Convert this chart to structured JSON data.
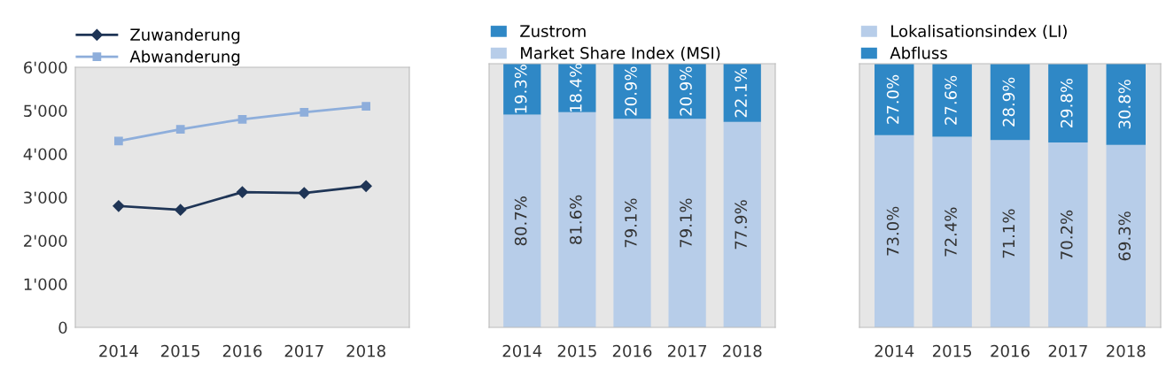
{
  "chart_data": [
    {
      "type": "line",
      "categories": [
        "2014",
        "2015",
        "2016",
        "2017",
        "2018"
      ],
      "series": [
        {
          "name": "Zuwanderung",
          "color": "#1f3556",
          "marker": "diamond",
          "values": [
            2800,
            2710,
            3120,
            3100,
            3260
          ]
        },
        {
          "name": "Abwanderung",
          "color": "#8eaedb",
          "marker": "square",
          "values": [
            4300,
            4570,
            4800,
            4960,
            5100
          ]
        }
      ],
      "ylim": [
        0,
        6000
      ],
      "yticks": [
        0,
        {
          "value": 1000,
          "label": "1'000"
        },
        {
          "value": 2000,
          "label": "2'000"
        },
        {
          "value": 3000,
          "label": "3'000"
        },
        {
          "value": 4000,
          "label": "4'000"
        },
        {
          "value": 5000,
          "label": "5'000"
        },
        {
          "value": 6000,
          "label": "6'000"
        }
      ],
      "grid": false,
      "legend": "top left"
    },
    {
      "type": "bar",
      "stacked": true,
      "tick_labels": "x",
      "legend": "top left",
      "categories": [
        "2014",
        "2015",
        "2016",
        "2017",
        "2018"
      ],
      "series": [
        {
          "name": "Market Share Index (MSI)",
          "color": "#b7cde9",
          "values": [
            80.7,
            81.6,
            79.1,
            79.1,
            77.9
          ],
          "value_labels": [
            "80.7%",
            "81.6%",
            "79.1%",
            "79.1%",
            "77.9%"
          ]
        },
        {
          "name": "Zustrom",
          "color": "#2f88c6",
          "values": [
            19.3,
            18.4,
            20.9,
            20.9,
            22.1
          ],
          "value_labels": [
            "19.3%",
            "18.4%",
            "20.9%",
            "20.9%",
            "22.1%"
          ]
        }
      ]
    },
    {
      "type": "bar",
      "stacked": true,
      "tick_labels": "x",
      "legend": "top left",
      "categories": [
        "2014",
        "2015",
        "2016",
        "2017",
        "2018"
      ],
      "series": [
        {
          "name": "Lokalisationsindex (LI)",
          "color": "#b7cde9",
          "values": [
            73.0,
            72.4,
            71.1,
            70.2,
            69.3
          ],
          "value_labels": [
            "73.0%",
            "72.4%",
            "71.1%",
            "70.2%",
            "69.3%"
          ]
        },
        {
          "name": "Abfluss",
          "color": "#2f88c6",
          "values": [
            27.0,
            27.6,
            28.9,
            29.8,
            30.8
          ],
          "value_labels": [
            "27.0%",
            "27.6%",
            "28.9%",
            "29.8%",
            "30.8%"
          ]
        }
      ]
    }
  ]
}
